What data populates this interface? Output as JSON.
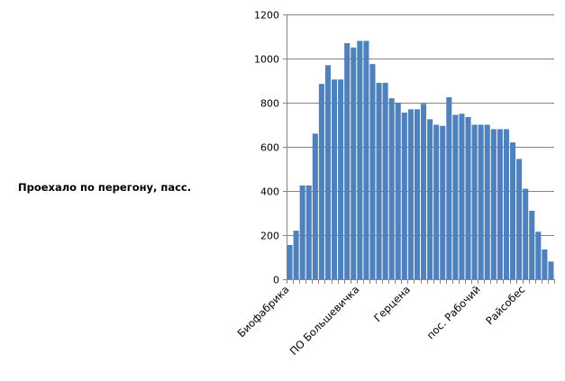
{
  "chart_data": {
    "type": "bar",
    "title": "",
    "xlabel": "",
    "ylabel": "Проехало по перегону, пасс.",
    "ylim": [
      0,
      1200
    ],
    "yticks": [
      0,
      200,
      400,
      600,
      800,
      1000,
      1200
    ],
    "grid": true,
    "legend": "none",
    "bar_color": "#4f81bd",
    "grid_color": "#868686",
    "x_tick_labels": [
      {
        "index": 0,
        "label": "Биофабрика"
      },
      {
        "index": 11,
        "label": "ПО Большевичка"
      },
      {
        "index": 19,
        "label": "Герцена"
      },
      {
        "index": 30,
        "label": "пос. Рабочий"
      },
      {
        "index": 37,
        "label": "Райсобес"
      }
    ],
    "values": [
      155,
      220,
      425,
      425,
      660,
      885,
      970,
      905,
      905,
      1070,
      1050,
      1080,
      1080,
      975,
      890,
      890,
      820,
      800,
      755,
      770,
      770,
      795,
      725,
      700,
      695,
      825,
      745,
      750,
      735,
      700,
      700,
      700,
      680,
      680,
      680,
      620,
      545,
      410,
      310,
      215,
      135,
      80
    ]
  }
}
